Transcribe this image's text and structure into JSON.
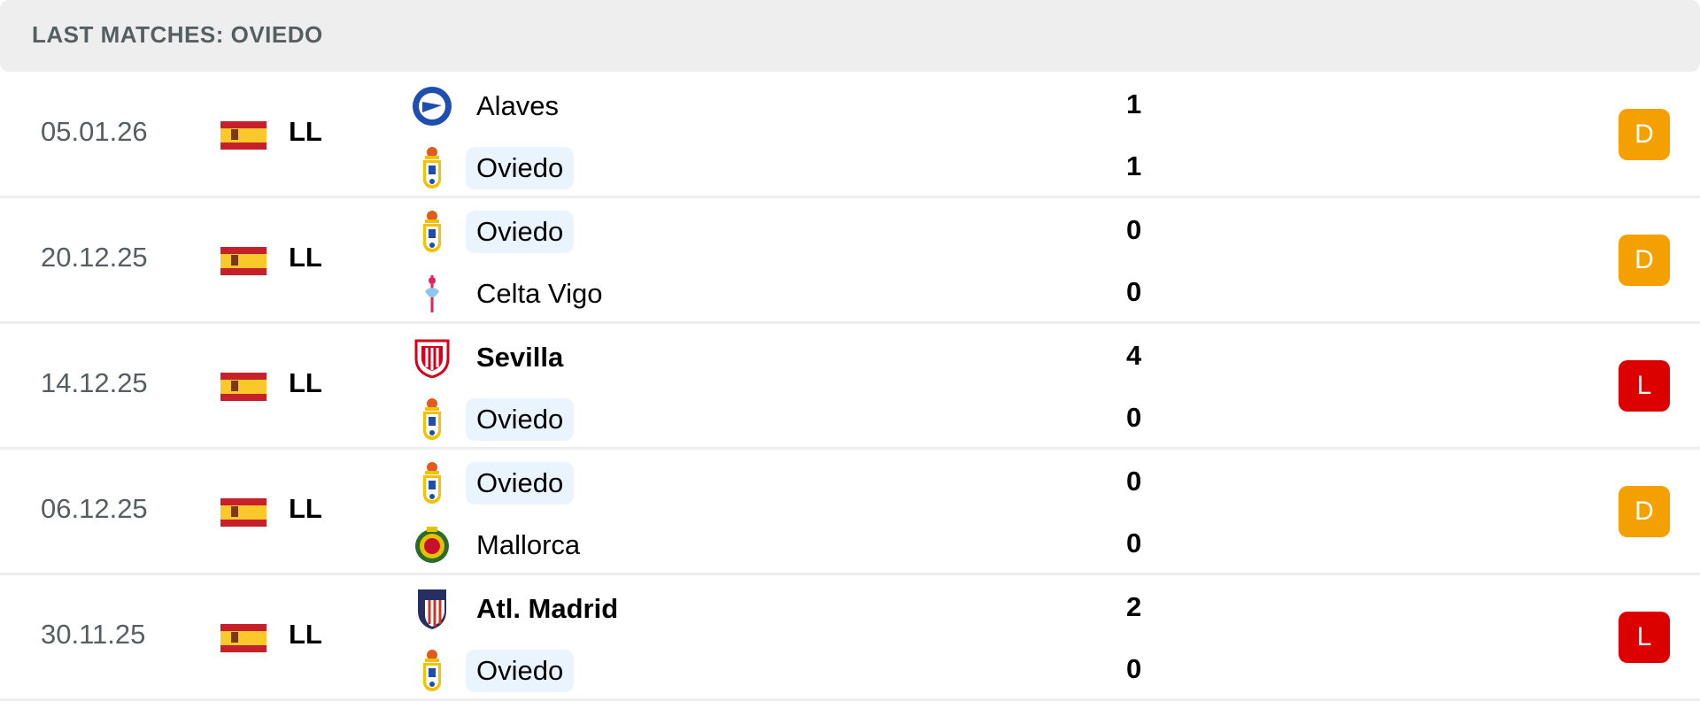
{
  "header": {
    "title": "LAST MATCHES: OVIEDO"
  },
  "colors": {
    "draw": "#f3a000",
    "loss": "#dc0000",
    "highlight": "#eaf4ff"
  },
  "matches": [
    {
      "date": "05.01.26",
      "league": "LL",
      "flag": "spain-flag",
      "home": {
        "name": "Alaves",
        "logo": "alaves-crest",
        "bold": false,
        "highlight": false
      },
      "away": {
        "name": "Oviedo",
        "logo": "oviedo-crest",
        "bold": false,
        "highlight": true
      },
      "home_score": "1",
      "away_score": "1",
      "result": "D"
    },
    {
      "date": "20.12.25",
      "league": "LL",
      "flag": "spain-flag",
      "home": {
        "name": "Oviedo",
        "logo": "oviedo-crest",
        "bold": false,
        "highlight": true
      },
      "away": {
        "name": "Celta Vigo",
        "logo": "celta-crest",
        "bold": false,
        "highlight": false
      },
      "home_score": "0",
      "away_score": "0",
      "result": "D"
    },
    {
      "date": "14.12.25",
      "league": "LL",
      "flag": "spain-flag",
      "home": {
        "name": "Sevilla",
        "logo": "sevilla-crest",
        "bold": true,
        "highlight": false
      },
      "away": {
        "name": "Oviedo",
        "logo": "oviedo-crest",
        "bold": false,
        "highlight": true
      },
      "home_score": "4",
      "away_score": "0",
      "result": "L"
    },
    {
      "date": "06.12.25",
      "league": "LL",
      "flag": "spain-flag",
      "home": {
        "name": "Oviedo",
        "logo": "oviedo-crest",
        "bold": false,
        "highlight": true
      },
      "away": {
        "name": "Mallorca",
        "logo": "mallorca-crest",
        "bold": false,
        "highlight": false
      },
      "home_score": "0",
      "away_score": "0",
      "result": "D"
    },
    {
      "date": "30.11.25",
      "league": "LL",
      "flag": "spain-flag",
      "home": {
        "name": "Atl. Madrid",
        "logo": "atletico-crest",
        "bold": true,
        "highlight": false
      },
      "away": {
        "name": "Oviedo",
        "logo": "oviedo-crest",
        "bold": false,
        "highlight": true
      },
      "home_score": "2",
      "away_score": "0",
      "result": "L"
    }
  ]
}
